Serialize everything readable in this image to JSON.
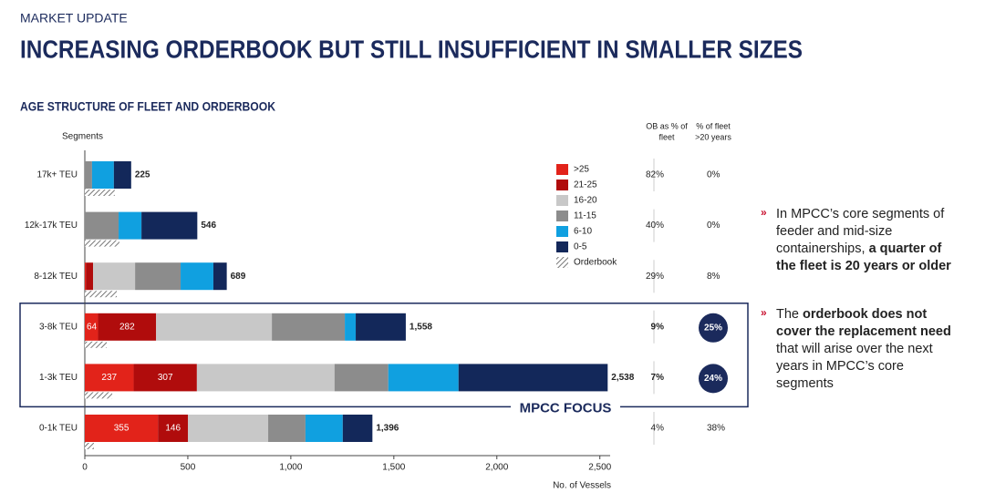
{
  "header": {
    "kicker": "MARKET UPDATE",
    "title": "INCREASING ORDERBOOK BUT STILL INSUFFICIENT IN SMALLER SIZES"
  },
  "chart_data": {
    "type": "stacked-hbar",
    "title": "AGE STRUCTURE OF FLEET AND ORDERBOOK",
    "y_label": "Segments",
    "x_label": "No. of Vessels",
    "categories": [
      "17k+ TEU",
      "12k-17k TEU",
      "8-12k TEU",
      "3-8k TEU",
      "1-3k TEU",
      "0-1k TEU"
    ],
    "series": [
      {
        "name": ">25",
        "color": "#e2231a",
        "values": [
          0,
          0,
          5,
          64,
          237,
          355
        ]
      },
      {
        "name": "21-25",
        "color": "#b00c0c",
        "values": [
          0,
          0,
          35,
          282,
          307,
          146
        ]
      },
      {
        "name": "16-20",
        "color": "#c8c8c8",
        "values": [
          0,
          0,
          204,
          562,
          668,
          389
        ]
      },
      {
        "name": "11-15",
        "color": "#8c8c8c",
        "values": [
          35,
          164,
          221,
          354,
          261,
          181
        ]
      },
      {
        "name": "6-10",
        "color": "#10a0e0",
        "values": [
          106,
          111,
          159,
          53,
          341,
          181
        ]
      },
      {
        "name": "0-5",
        "color": "#13285a",
        "values": [
          84,
          271,
          65,
          243,
          724,
          144
        ]
      }
    ],
    "orderbook": {
      "name": "Orderbook",
      "values": [
        145,
        168,
        155,
        106,
        133,
        44
      ]
    },
    "total_labels": [
      "225",
      "546",
      "689",
      "1,558",
      "2,538",
      "1,396"
    ],
    "xlim": [
      0,
      2550
    ],
    "xticks": [
      0,
      500,
      {
        "value": 1000,
        "label": "1,000"
      },
      {
        "value": 1500,
        "label": "1,500"
      },
      {
        "value": 2000,
        "label": "2,000"
      },
      {
        "value": 2500,
        "label": "2,500"
      }
    ],
    "columns": [
      {
        "header": [
          "OB as % of",
          "fleet"
        ],
        "values": [
          "82%",
          "40%",
          "29%",
          "9%",
          "7%",
          "4%"
        ]
      },
      {
        "header": [
          "% of fleet",
          ">20 years"
        ],
        "values": [
          "0%",
          "0%",
          "8%",
          "25%",
          "24%",
          "38%"
        ]
      }
    ],
    "focus": {
      "label": "MPCC FOCUS",
      "rows": [
        3,
        4
      ]
    }
  },
  "bullets": [
    [
      [
        {
          "text": "In MPCC’s core segments of"
        }
      ],
      [
        {
          "text": "feeder and mid-size"
        }
      ],
      [
        {
          "text": "containerships, "
        },
        {
          "text": "a quarter of",
          "bold": true
        }
      ],
      [
        {
          "text": "the fleet is 20 years or older",
          "bold": true
        }
      ]
    ],
    [
      [
        {
          "text": "The "
        },
        {
          "text": "orderbook does not",
          "bold": true
        }
      ],
      [
        {
          "text": "cover the replacement need",
          "bold": true
        }
      ],
      [
        {
          "text": "that will arise over the next"
        }
      ],
      [
        {
          "text": "years in MPCC’s core"
        }
      ],
      [
        {
          "text": "segments"
        }
      ]
    ]
  ]
}
